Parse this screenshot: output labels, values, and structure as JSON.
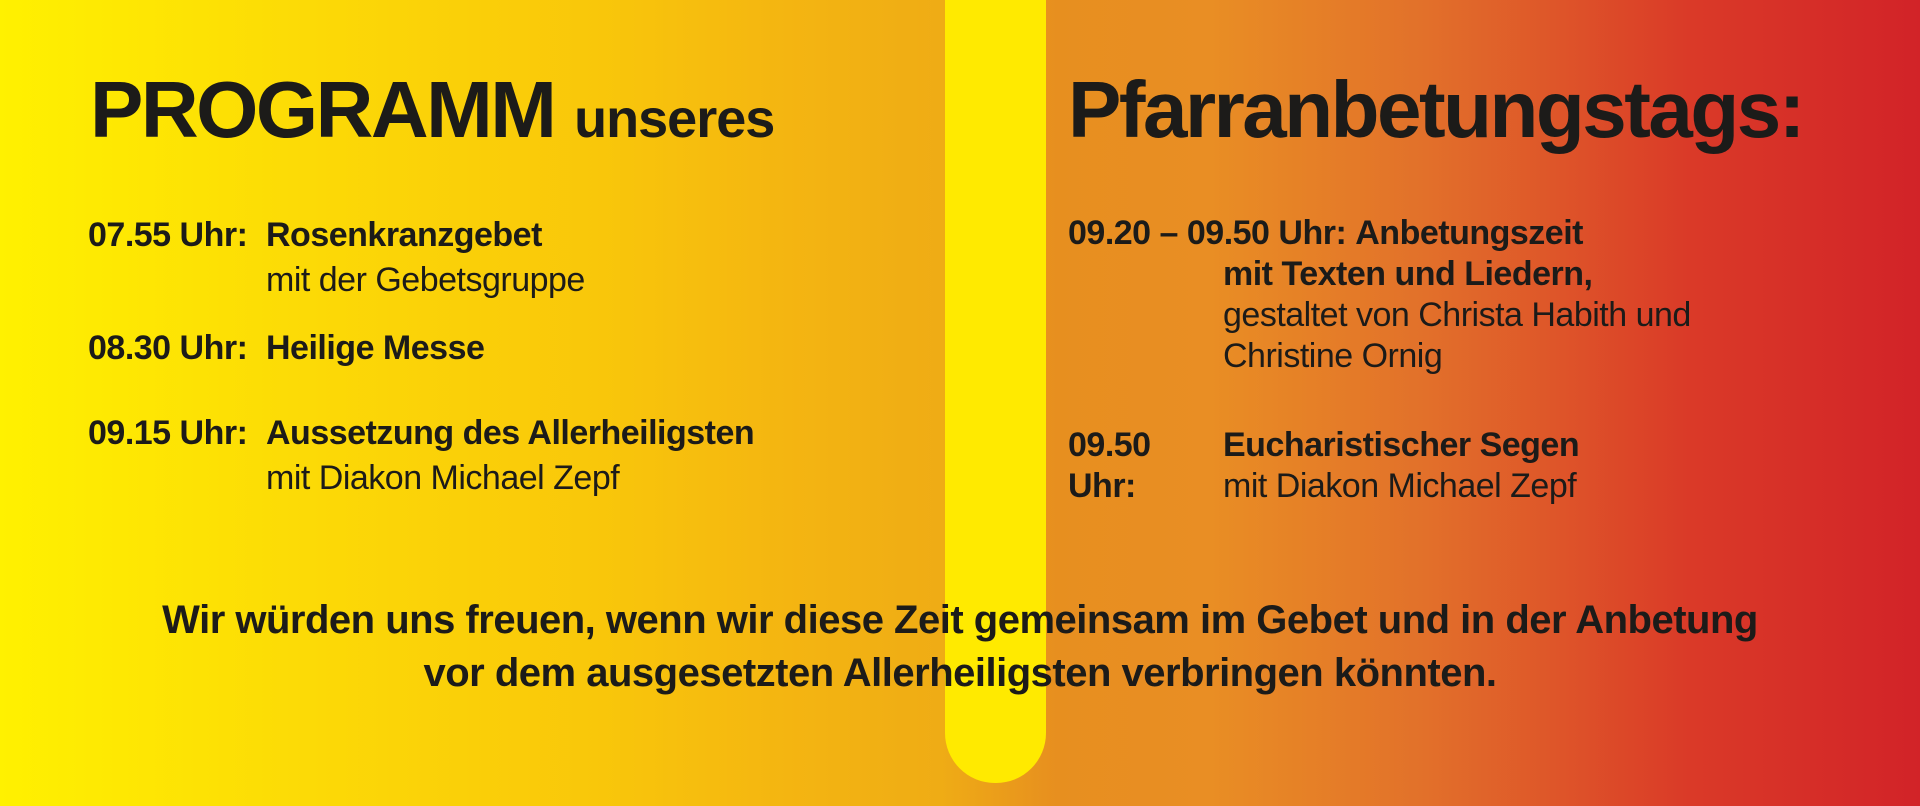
{
  "theme": {
    "gradient_stops": [
      "#FFF100 0%",
      "#FCDA06 16%",
      "#F9C70A 31%",
      "#F4B511 41%",
      "#EFAC15 49%",
      "#E78F1F 55%",
      "#E98E24 63%",
      "#E2712A 74%",
      "#DA3A28 88%",
      "#D22328 100%"
    ],
    "stripe_color": "#FFEA00",
    "text_color": "#1C1B19"
  },
  "header": {
    "left_title_main": "PROGRAMM",
    "left_title_suffix": "unseres",
    "right_title": "Pfarranbetungstags:"
  },
  "left_schedule": {
    "items": [
      {
        "time": "07.55 Uhr:",
        "title": "Rosenkranzgebet",
        "subtitle": "mit der Gebetsgruppe"
      },
      {
        "time": "08.30 Uhr:",
        "title": "Heilige Messe",
        "subtitle": ""
      },
      {
        "time": "09.15 Uhr:",
        "title": "Aussetzung des Allerheiligsten",
        "subtitle": "mit Diakon Michael Zepf"
      }
    ]
  },
  "right_schedule": {
    "item1": {
      "time": "09.20 – 09.50 Uhr:",
      "title": "Anbetungszeit",
      "line_bold": "mit Texten und Liedern,",
      "line_regular_1": "gestaltet von Christa Habith und",
      "line_regular_2": "Christine Ornig"
    },
    "item2": {
      "time": "09.50 Uhr:",
      "title": "Eucharistischer Segen",
      "subtitle": "mit Diakon Michael Zepf"
    }
  },
  "closing": {
    "line1": "Wir würden uns freuen, wenn wir diese Zeit gemeinsam im Gebet und in der Anbetung",
    "line2": "vor dem ausgesetzten Allerheiligsten verbringen könnten."
  }
}
